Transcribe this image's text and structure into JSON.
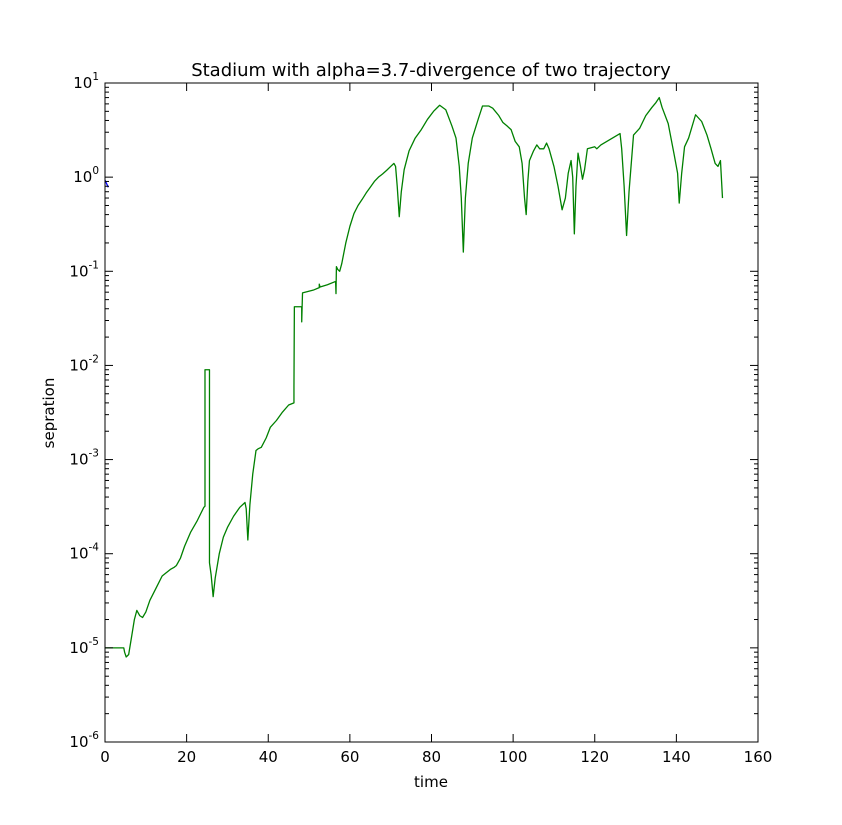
{
  "chart_data": {
    "type": "line",
    "title": "Stadium with alpha=3.7-divergence of two trajectory",
    "xlabel": "time",
    "ylabel": "sepration",
    "xlim": [
      0,
      160
    ],
    "ylim": [
      1e-06,
      10
    ],
    "yscale": "log",
    "grid": false,
    "xticks": [
      0,
      20,
      40,
      60,
      80,
      100,
      120,
      140,
      160
    ],
    "yticks": [
      {
        "value": 1e-06,
        "base": "10",
        "exp": "-6"
      },
      {
        "value": 1e-05,
        "base": "10",
        "exp": "-5"
      },
      {
        "value": 0.0001,
        "base": "10",
        "exp": "-4"
      },
      {
        "value": 0.001,
        "base": "10",
        "exp": "-3"
      },
      {
        "value": 0.01,
        "base": "10",
        "exp": "-2"
      },
      {
        "value": 0.1,
        "base": "10",
        "exp": "-1"
      },
      {
        "value": 1,
        "base": "10",
        "exp": "0"
      },
      {
        "value": 10,
        "base": "10",
        "exp": "1"
      }
    ],
    "series": [
      {
        "color": "#0000ff",
        "points": [
          [
            0,
            0.93
          ],
          [
            0.8,
            0.78
          ]
        ]
      },
      {
        "color": "#008000",
        "points": [
          [
            0,
            1e-05
          ],
          [
            4.6,
            1e-05
          ],
          [
            4.8,
            9e-06
          ],
          [
            5.2,
            8e-06
          ],
          [
            5.8,
            8.5e-06
          ],
          [
            6.5,
            1.3e-05
          ],
          [
            7.2,
            2e-05
          ],
          [
            7.8,
            2.5e-05
          ],
          [
            8.5,
            2.2e-05
          ],
          [
            9.2,
            2.1e-05
          ],
          [
            10,
            2.4e-05
          ],
          [
            11,
            3.2e-05
          ],
          [
            12.5,
            4.3e-05
          ],
          [
            14,
            5.8e-05
          ],
          [
            16,
            6.8e-05
          ],
          [
            17,
            7.2e-05
          ],
          [
            17.5,
            7.5e-05
          ],
          [
            18.5,
            9e-05
          ],
          [
            19.5,
            0.00012
          ],
          [
            21,
            0.00017
          ],
          [
            22.5,
            0.00022
          ],
          [
            24.2,
            0.00031
          ],
          [
            24.5,
            0.00032
          ],
          [
            24.5,
            0.009
          ],
          [
            25.6,
            0.009
          ],
          [
            25.6,
            8e-05
          ],
          [
            26,
            6e-05
          ],
          [
            26.5,
            3.5e-05
          ],
          [
            27,
            5.5e-05
          ],
          [
            28,
            0.0001
          ],
          [
            29,
            0.00015
          ],
          [
            30,
            0.00019
          ],
          [
            31.5,
            0.00025
          ],
          [
            33,
            0.00031
          ],
          [
            34.3,
            0.00035
          ],
          [
            34.6,
            0.0003
          ],
          [
            35,
            0.00014
          ],
          [
            35.5,
            0.00033
          ],
          [
            36.2,
            0.0007
          ],
          [
            37,
            0.00125
          ],
          [
            37.5,
            0.0013
          ],
          [
            38.3,
            0.00135
          ],
          [
            39.5,
            0.0017
          ],
          [
            40.5,
            0.0022
          ],
          [
            42,
            0.0026
          ],
          [
            43.5,
            0.0032
          ],
          [
            45,
            0.0038
          ],
          [
            46.3,
            0.004
          ],
          [
            46.3,
            0.006
          ],
          [
            46.4,
            0.042
          ],
          [
            48.2,
            0.042
          ],
          [
            48.2,
            0.029
          ],
          [
            48.3,
            0.042
          ],
          [
            48.4,
            0.059
          ],
          [
            51,
            0.063
          ],
          [
            52.5,
            0.067
          ],
          [
            52.5,
            0.073
          ],
          [
            52.7,
            0.068
          ],
          [
            54.5,
            0.072
          ],
          [
            56.5,
            0.078
          ],
          [
            56.6,
            0.058
          ],
          [
            56.7,
            0.112
          ],
          [
            57,
            0.105
          ],
          [
            57.5,
            0.1
          ],
          [
            58,
            0.12
          ],
          [
            59,
            0.2
          ],
          [
            60,
            0.3
          ],
          [
            61,
            0.41
          ],
          [
            62,
            0.5
          ],
          [
            63,
            0.58
          ],
          [
            64,
            0.68
          ],
          [
            65,
            0.78
          ],
          [
            66,
            0.9
          ],
          [
            67,
            1.0
          ],
          [
            68,
            1.08
          ],
          [
            69,
            1.18
          ],
          [
            70,
            1.3
          ],
          [
            70.8,
            1.4
          ],
          [
            71.2,
            1.3
          ],
          [
            71.6,
            0.8
          ],
          [
            72.1,
            0.38
          ],
          [
            72.6,
            0.7
          ],
          [
            73.3,
            1.2
          ],
          [
            74.5,
            1.9
          ],
          [
            76,
            2.6
          ],
          [
            77.5,
            3.2
          ],
          [
            79,
            4.1
          ],
          [
            80.5,
            5
          ],
          [
            82,
            5.8
          ],
          [
            83.5,
            5.2
          ],
          [
            85,
            3.5
          ],
          [
            86,
            2.6
          ],
          [
            86.8,
            1.3
          ],
          [
            87.3,
            0.6
          ],
          [
            87.8,
            0.16
          ],
          [
            88.3,
            0.6
          ],
          [
            89,
            1.4
          ],
          [
            90,
            2.6
          ],
          [
            91.5,
            4.2
          ],
          [
            92.5,
            5.7
          ],
          [
            94,
            5.7
          ],
          [
            95,
            5.4
          ],
          [
            96.5,
            4.5
          ],
          [
            97.5,
            3.8
          ],
          [
            98.5,
            3.5
          ],
          [
            99.5,
            3.2
          ],
          [
            100.5,
            2.4
          ],
          [
            101.5,
            2.1
          ],
          [
            102.2,
            1.4
          ],
          [
            102.8,
            0.6
          ],
          [
            103.2,
            0.4
          ],
          [
            103.6,
            0.9
          ],
          [
            104,
            1.5
          ],
          [
            105,
            1.9
          ],
          [
            105.8,
            2.2
          ],
          [
            106.5,
            2.0
          ],
          [
            107.5,
            2.0
          ],
          [
            108.2,
            2.3
          ],
          [
            108.8,
            2.0
          ],
          [
            110,
            1.3
          ],
          [
            111,
            0.8
          ],
          [
            112,
            0.45
          ],
          [
            112.8,
            0.6
          ],
          [
            113.5,
            1.1
          ],
          [
            114.2,
            1.5
          ],
          [
            114.6,
            1.0
          ],
          [
            115,
            0.25
          ],
          [
            115.4,
            0.8
          ],
          [
            115.9,
            1.8
          ],
          [
            116.5,
            1.3
          ],
          [
            117,
            0.95
          ],
          [
            117.5,
            1.2
          ],
          [
            118.2,
            2.0
          ],
          [
            120,
            2.1
          ],
          [
            120.5,
            2.0
          ],
          [
            121.5,
            2.2
          ],
          [
            123,
            2.4
          ],
          [
            126.2,
            2.9
          ],
          [
            126.6,
            2.0
          ],
          [
            127.2,
            0.8
          ],
          [
            127.8,
            0.24
          ],
          [
            128.4,
            0.7
          ],
          [
            129.5,
            2.8
          ],
          [
            131,
            3.3
          ],
          [
            132.5,
            4.5
          ],
          [
            134,
            5.5
          ],
          [
            135,
            6.2
          ],
          [
            135.8,
            7
          ],
          [
            136.5,
            5.5
          ],
          [
            138,
            3.7
          ],
          [
            139.5,
            1.7
          ],
          [
            140.3,
            1.1
          ],
          [
            140.7,
            0.53
          ],
          [
            141.3,
            1.1
          ],
          [
            142,
            2.1
          ],
          [
            143,
            2.6
          ],
          [
            144.7,
            4.6
          ],
          [
            146.2,
            3.9
          ],
          [
            147.5,
            2.8
          ],
          [
            148.5,
            2.0
          ],
          [
            149.5,
            1.4
          ],
          [
            150.2,
            1.3
          ],
          [
            150.8,
            1.5
          ],
          [
            151.3,
            0.6
          ]
        ]
      }
    ]
  }
}
